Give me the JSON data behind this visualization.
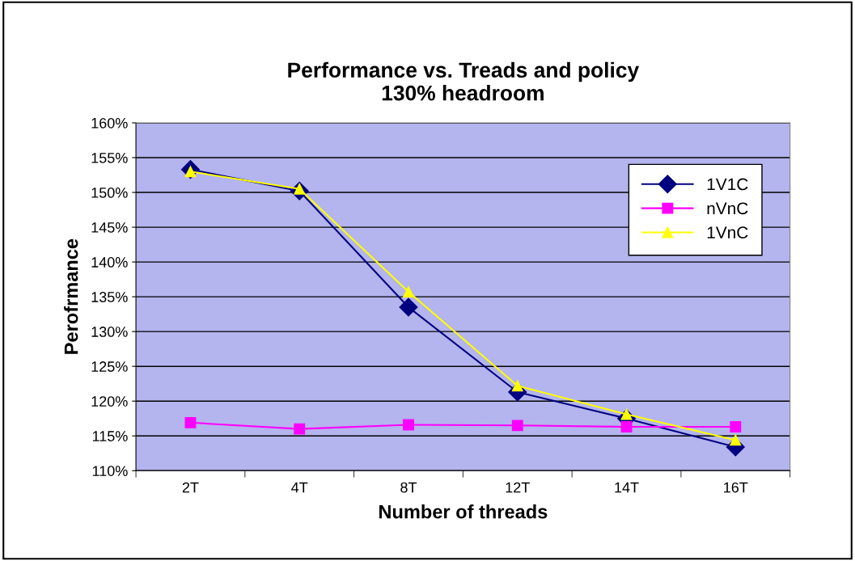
{
  "chart_data": {
    "type": "line",
    "title": "Performance vs. Treads and policy\n130% headroom",
    "xlabel": "Number of threads",
    "ylabel": "Perofrmance",
    "categories": [
      "2T",
      "4T",
      "8T",
      "12T",
      "14T",
      "16T"
    ],
    "series": [
      {
        "name": "1V1C",
        "color": "#000080",
        "marker": "diamond",
        "values": [
          153.3,
          150.2,
          133.5,
          121.3,
          117.5,
          113.4
        ]
      },
      {
        "name": "nVnC",
        "color": "#ff00ff",
        "marker": "square",
        "values": [
          116.9,
          116.0,
          116.6,
          116.5,
          116.3,
          116.3
        ]
      },
      {
        "name": "1VnC",
        "color": "#ffff00",
        "marker": "triangle",
        "values": [
          153.0,
          150.5,
          135.7,
          122.2,
          118.1,
          114.4
        ]
      }
    ],
    "ylim": [
      110,
      160
    ],
    "yticks": [
      {
        "value": 110,
        "label": "110%"
      },
      {
        "value": 115,
        "label": "115%"
      },
      {
        "value": 120,
        "label": "120%"
      },
      {
        "value": 125,
        "label": "125%"
      },
      {
        "value": 130,
        "label": "130%"
      },
      {
        "value": 135,
        "label": "135%"
      },
      {
        "value": 140,
        "label": "140%"
      },
      {
        "value": 145,
        "label": "145%"
      },
      {
        "value": 150,
        "label": "150%"
      },
      {
        "value": 155,
        "label": "155%"
      },
      {
        "value": 160,
        "label": "160%"
      }
    ],
    "grid": "y",
    "legend": "right",
    "line_style": "solid"
  }
}
